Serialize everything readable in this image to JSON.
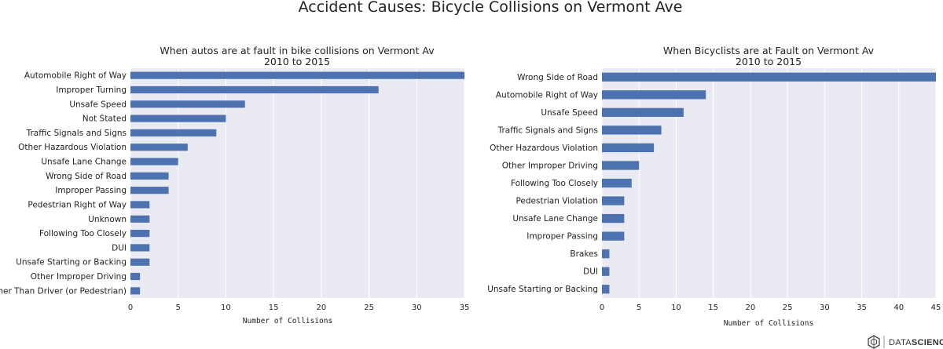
{
  "suptitle": "Accident Causes: Bicycle Collisions on Vermont Ave",
  "brand": {
    "text_light": "DATA",
    "text_bold": "SCIENCE"
  },
  "colors": {
    "bar": "#4c72b0",
    "plot_bg": "#eaeaf2",
    "grid": "#ffffff"
  },
  "chart_data": [
    {
      "type": "bar",
      "orientation": "horizontal",
      "title_line1": "When autos are at fault in bike collisions on Vermont Av",
      "title_line2": "2010 to 2015",
      "xlabel": "Number of Collisions",
      "ylabel": "",
      "xlim": [
        0,
        35
      ],
      "xticks": [
        0,
        5,
        10,
        15,
        20,
        25,
        30,
        35
      ],
      "grid": true,
      "categories": [
        "Automobile Right of Way",
        "Improper Turning",
        "Unsafe Speed",
        "Not Stated",
        "Traffic Signals and Signs",
        "Other Hazardous Violation",
        "Unsafe Lane Change",
        "Wrong Side of Road",
        "Improper Passing",
        "Pedestrian Right of Way",
        "Unknown",
        "Following Too Closely",
        "DUI",
        "Unsafe Starting or Backing",
        "Other Improper Driving",
        "Other Than Driver (or Pedestrian)"
      ],
      "values": [
        35,
        26,
        12,
        10,
        9,
        6,
        5,
        4,
        4,
        2,
        2,
        2,
        2,
        2,
        1,
        1
      ]
    },
    {
      "type": "bar",
      "orientation": "horizontal",
      "title_line1": "When Bicyclists are at Fault on Vermont Av",
      "title_line2": "2010 to 2015",
      "xlabel": "Number of Collisions",
      "ylabel": "",
      "xlim": [
        0,
        45
      ],
      "xticks": [
        0,
        5,
        10,
        15,
        20,
        25,
        30,
        35,
        40,
        45
      ],
      "grid": true,
      "categories": [
        "Wrong Side of Road",
        "Automobile Right of Way",
        "Unsafe Speed",
        "Traffic Signals and Signs",
        "Other Hazardous Violation",
        "Other Improper Driving",
        "Following Too Closely",
        "Pedestrian Violation",
        "Unsafe Lane Change",
        "Improper Passing",
        "Brakes",
        "DUI",
        "Unsafe Starting or Backing"
      ],
      "values": [
        45,
        14,
        11,
        8,
        7,
        5,
        4,
        3,
        3,
        3,
        1,
        1,
        1
      ]
    }
  ]
}
